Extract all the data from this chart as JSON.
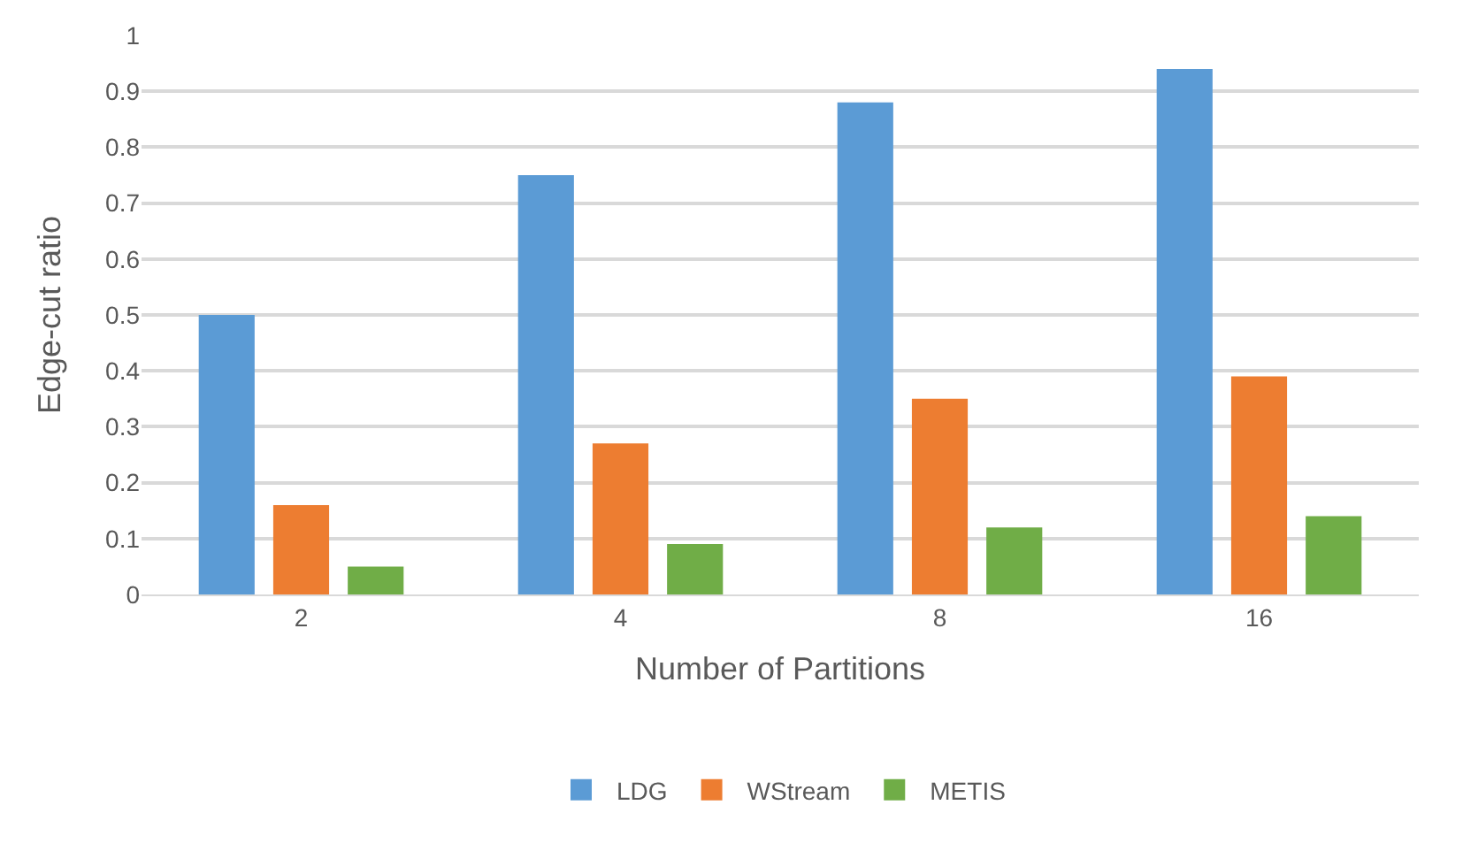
{
  "chart_data": {
    "type": "bar",
    "xlabel": "Number of Partitions",
    "ylabel": "Edge-cut ratio",
    "categories": [
      "2",
      "4",
      "8",
      "16"
    ],
    "series": [
      {
        "name": "LDG",
        "color": "#5b9bd5",
        "values": [
          0.5,
          0.75,
          0.88,
          0.94
        ]
      },
      {
        "name": "WStream",
        "color": "#ed7d31",
        "values": [
          0.16,
          0.27,
          0.35,
          0.39
        ]
      },
      {
        "name": "METIS",
        "color": "#70ad47",
        "values": [
          0.05,
          0.09,
          0.12,
          0.14
        ]
      }
    ],
    "ylim": [
      0,
      1
    ],
    "yticks": [
      0,
      0.1,
      0.2,
      0.3,
      0.4,
      0.5,
      0.6,
      0.7,
      0.8,
      0.9,
      1
    ],
    "grid": "y",
    "legend": "bottom"
  }
}
